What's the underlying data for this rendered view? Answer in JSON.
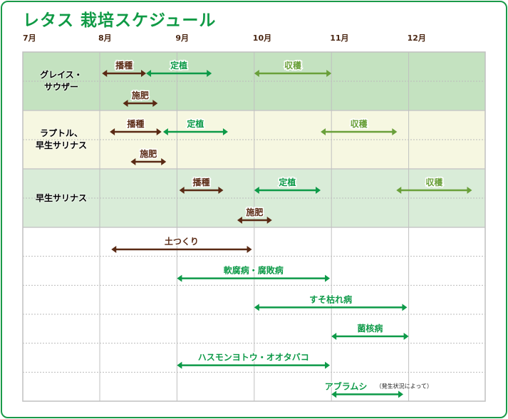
{
  "title": "レタス 栽培スケジュール",
  "chart_data": {
    "type": "gantt",
    "months": [
      "7月",
      "8月",
      "9月",
      "10月",
      "11月",
      "12月"
    ],
    "x_unit": "month",
    "colors": {
      "sowing": "#5a2a14",
      "planting": "#0d9a48",
      "harvest": "#6aa03a",
      "fertilize": "#5a2a14",
      "prep": "#5a2a14",
      "pest": "#0d9a48"
    },
    "groups": [
      {
        "name": "グレイス・\nサウザー",
        "label_lines": [
          "グレイス・",
          "サウザー"
        ],
        "bg": "#c4e2c0",
        "tasks": [
          {
            "label": "播種",
            "type": "sowing",
            "start": 8.03,
            "end": 8.6,
            "row": 0
          },
          {
            "label": "定植",
            "type": "planting",
            "start": 8.6,
            "end": 9.45,
            "row": 0
          },
          {
            "label": "収穫",
            "type": "harvest",
            "start": 10.0,
            "end": 11.0,
            "row": 0
          },
          {
            "label": "施肥",
            "type": "fertilize",
            "start": 8.3,
            "end": 8.75,
            "row": 1
          }
        ]
      },
      {
        "name": "ラプトル、\n早生サリナス",
        "label_lines": [
          "ラプトル、",
          "早生サリナス"
        ],
        "bg": "#f6f7e1",
        "tasks": [
          {
            "label": "播種",
            "type": "sowing",
            "start": 8.13,
            "end": 8.8,
            "row": 0
          },
          {
            "label": "定植",
            "type": "planting",
            "start": 8.82,
            "end": 9.66,
            "row": 0
          },
          {
            "label": "収穫",
            "type": "harvest",
            "start": 10.86,
            "end": 11.85,
            "row": 0
          },
          {
            "label": "施肥",
            "type": "fertilize",
            "start": 8.4,
            "end": 8.86,
            "row": 1
          }
        ]
      },
      {
        "name": "早生サリナス",
        "label_lines": [
          "早生サリナス"
        ],
        "bg": "#d9ecd8",
        "tasks": [
          {
            "label": "播種",
            "type": "sowing",
            "start": 9.03,
            "end": 9.6,
            "row": 0
          },
          {
            "label": "定植",
            "type": "planting",
            "start": 10.0,
            "end": 10.86,
            "row": 0
          },
          {
            "label": "収穫",
            "type": "harvest",
            "start": 11.84,
            "end": 12.82,
            "row": 0
          },
          {
            "label": "施肥",
            "type": "fertilize",
            "start": 9.78,
            "end": 10.23,
            "row": 1
          }
        ]
      }
    ],
    "general": [
      {
        "label": "土つくり",
        "type": "prep",
        "start": 8.15,
        "end": 9.97
      },
      {
        "label": "軟腐病・腐敗病",
        "type": "pest",
        "start": 9.0,
        "end": 10.98
      },
      {
        "label": "すそ枯れ病",
        "type": "pest",
        "start": 10.0,
        "end": 11.98
      },
      {
        "label": "菌核病",
        "type": "pest",
        "start": 11.0,
        "end": 12.0
      },
      {
        "label": "ハスモンヨトウ・オオタバコ",
        "type": "pest",
        "start": 9.0,
        "end": 10.98
      },
      {
        "label": "アブラムシ",
        "type": "pest",
        "start": 11.0,
        "end": 11.93,
        "note": "（発生状況によって）"
      }
    ]
  }
}
